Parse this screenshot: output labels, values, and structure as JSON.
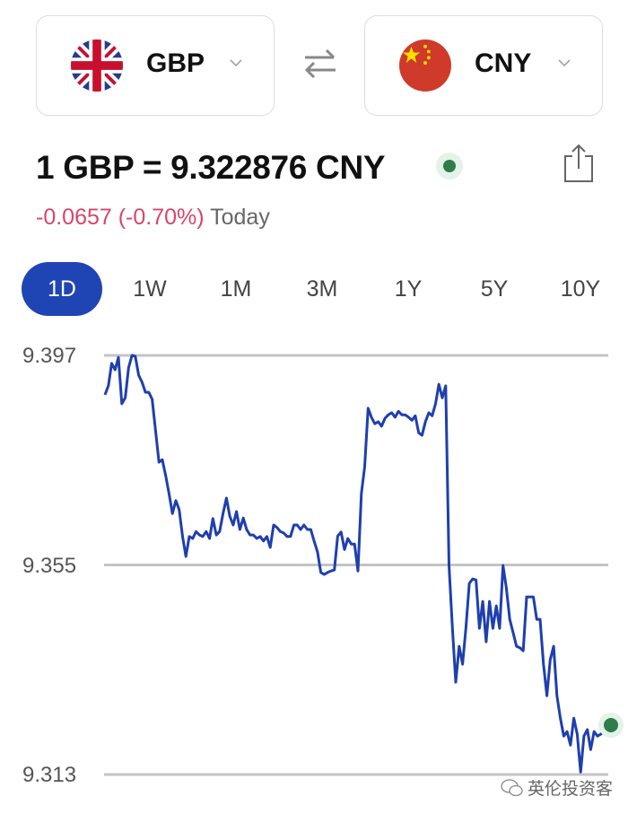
{
  "converter": {
    "from": {
      "code": "GBP",
      "flag": "uk-flag-icon"
    },
    "to": {
      "code": "CNY",
      "flag": "china-flag-icon"
    },
    "swap_icon": "swap-arrows-icon"
  },
  "quote": {
    "rate_text": "1 GBP = 9.322876 CNY",
    "change": "-0.0657 (-0.70%)",
    "period": "Today",
    "live_color": "#2e7d4a",
    "negative_color": "#d6466a"
  },
  "timeframes": [
    {
      "label": "1D",
      "active": true
    },
    {
      "label": "1W"
    },
    {
      "label": "1M"
    },
    {
      "label": "3M"
    },
    {
      "label": "1Y"
    },
    {
      "label": "5Y"
    },
    {
      "label": "10Y"
    }
  ],
  "chart_data": {
    "type": "line",
    "ylim": [
      9.313,
      9.397
    ],
    "y_ticks": [
      "9.397",
      "9.355",
      "9.313"
    ],
    "grid": true,
    "line_color": "#1f3fae",
    "series": [
      {
        "values": [
          9.3891,
          9.3909,
          9.3954,
          9.3941,
          9.3966,
          9.3873,
          9.3885,
          9.3945,
          9.397,
          9.3968,
          9.393,
          9.3916,
          9.3896,
          9.3896,
          9.3882,
          9.3819,
          9.3756,
          9.3761,
          9.3729,
          9.3693,
          9.3653,
          9.3679,
          9.3661,
          9.3607,
          9.3567,
          9.3607,
          9.3603,
          9.3617,
          9.361,
          9.3607,
          9.3617,
          9.3603,
          9.3643,
          9.361,
          9.3617,
          9.3653,
          9.3684,
          9.3648,
          9.363,
          9.3657,
          9.3621,
          9.3644,
          9.3621,
          9.361,
          9.361,
          9.3603,
          9.3607,
          9.3598,
          9.3607,
          9.3585,
          9.363,
          9.3625,
          9.3617,
          9.3614,
          9.3607,
          9.3607,
          9.363,
          9.363,
          9.3621,
          9.363,
          9.3621,
          9.3621,
          9.3598,
          9.3576,
          9.3535,
          9.3531,
          9.3535,
          9.3538,
          9.354,
          9.3608,
          9.3616,
          9.3581,
          9.3603,
          9.3592,
          9.3592,
          9.3538,
          9.3693,
          9.3747,
          9.3864,
          9.3846,
          9.3833,
          9.3837,
          9.3828,
          9.3844,
          9.3851,
          9.3855,
          9.3846,
          9.3858,
          9.3851,
          9.3851,
          9.3846,
          9.384,
          9.3849,
          9.3815,
          9.381,
          9.3837,
          9.3855,
          9.3849,
          9.3873,
          9.3912,
          9.3885,
          9.3909,
          9.3549,
          9.3423,
          9.3315,
          9.3387,
          9.3351,
          9.3423,
          9.3513,
          9.3522,
          9.352,
          9.3423,
          9.3477,
          9.3396,
          9.3477,
          9.3423,
          9.3468,
          9.3423,
          9.3549,
          9.3504,
          9.3441,
          9.3414,
          9.3387,
          9.3384,
          9.3378,
          9.3486,
          9.3486,
          9.3486,
          9.3441,
          9.3441,
          9.3351,
          9.3288,
          9.336,
          9.3387,
          9.3288,
          9.3243,
          9.3207,
          9.3216,
          9.3189,
          9.3243,
          9.3211,
          9.3135,
          9.3207,
          9.322,
          9.318,
          9.3216,
          9.3207,
          9.3211,
          9.3216,
          9.3222,
          9.3229
        ]
      }
    ]
  },
  "watermark": "英伦投资客"
}
